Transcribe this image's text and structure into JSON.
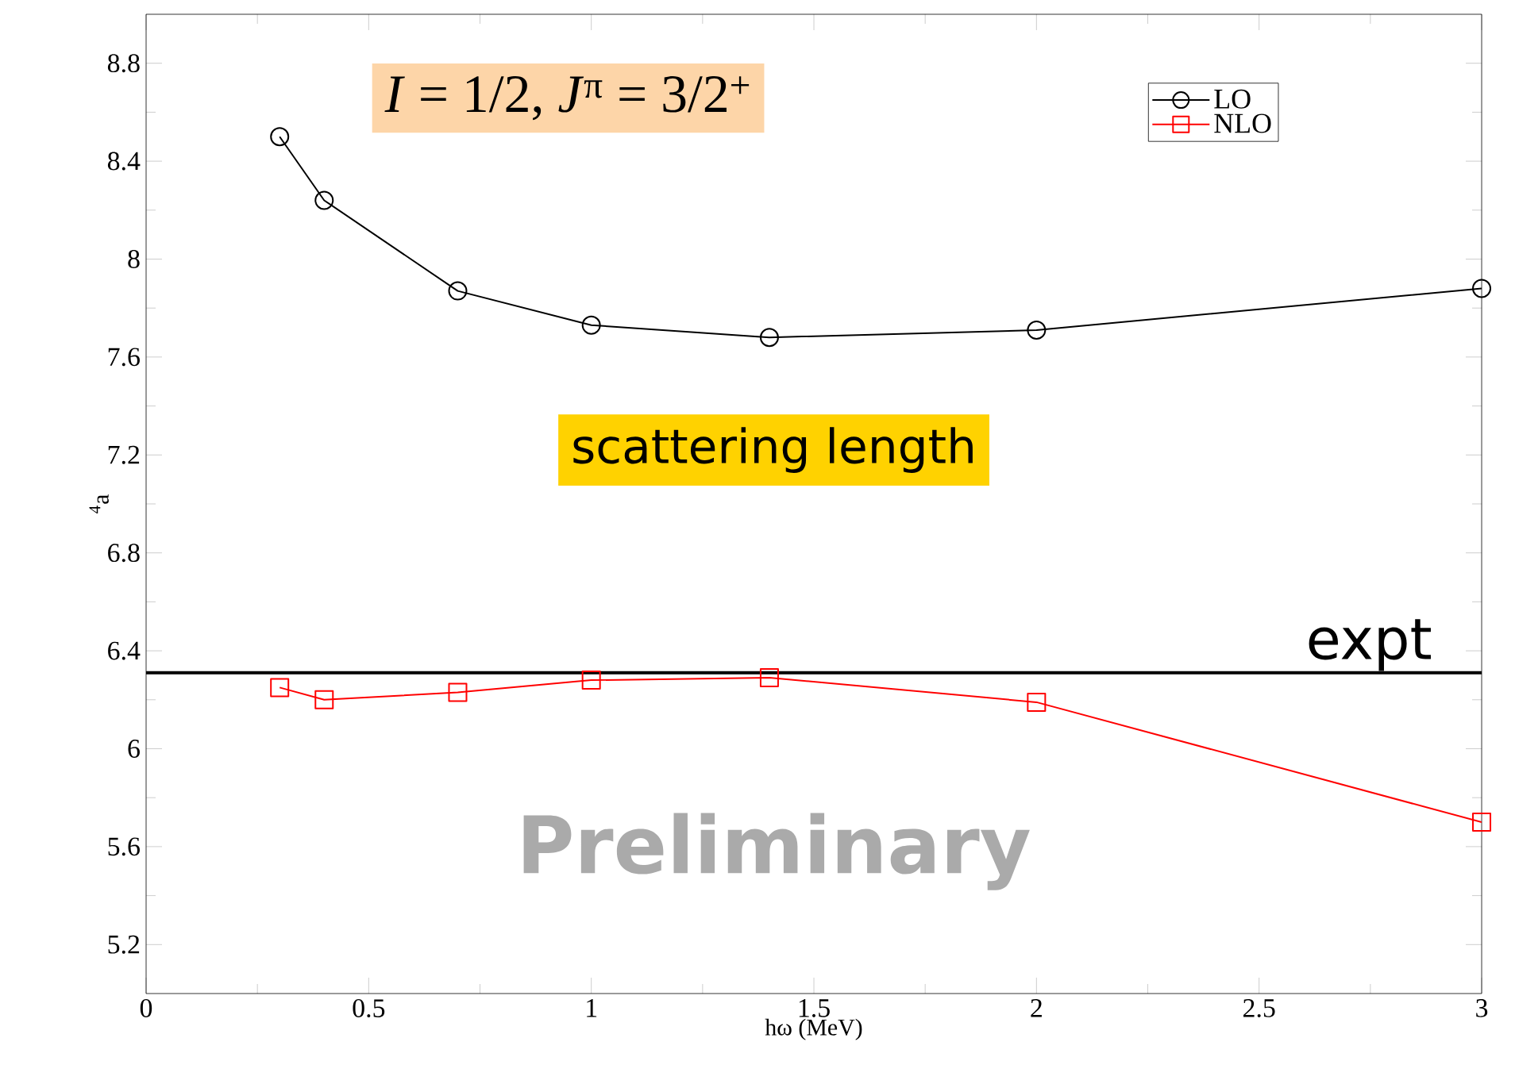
{
  "chart_data": {
    "type": "line",
    "title": "*I* = 1/2, *J*$^{π}$ = 3/2$^{+}$",
    "xlabel": "hω (MeV)",
    "ylabel": "$^{4}$a",
    "x": [
      0.3,
      0.4,
      0.7,
      1.0,
      1.4,
      2.0,
      3.0
    ],
    "series": [
      {
        "name": "LO",
        "color": "#000000",
        "marker": "circle",
        "values": [
          8.5,
          8.24,
          7.87,
          7.73,
          7.68,
          7.71,
          7.88
        ]
      },
      {
        "name": "NLO",
        "color": "#ff0000",
        "marker": "square",
        "values": [
          6.25,
          6.2,
          6.23,
          6.28,
          6.29,
          6.19,
          5.7
        ]
      }
    ],
    "xlim": [
      0,
      3
    ],
    "ylim": [
      5.0,
      9.0
    ],
    "xticks": [
      0,
      0.5,
      1,
      1.5,
      2,
      2.5,
      3
    ],
    "yticks": [
      5.2,
      5.6,
      6,
      6.4,
      6.8,
      7.2,
      7.6,
      8,
      8.4,
      8.8
    ],
    "ref_lines": [
      {
        "axis": "y",
        "value": 6.31,
        "label": "expt",
        "color": "#000000"
      }
    ],
    "annotations": [
      "scattering length",
      "Preliminary"
    ],
    "legend": "top right",
    "grid": false
  }
}
